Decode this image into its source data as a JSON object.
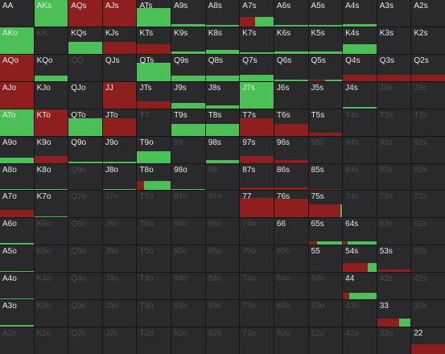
{
  "colors": {
    "raise": "#8e1f1f",
    "call": "#4cbf56",
    "cell": "#2a2a2d",
    "active_text": "#e8e8ea",
    "inactive_text": "#4d4d52"
  },
  "grid": {
    "rows": [
      [
        "AA",
        "AKs",
        "AQs",
        "AJs",
        "ATs",
        "A9s",
        "A8s",
        "A7s",
        "A6s",
        "A5s",
        "A4s",
        "A3s",
        "A2s"
      ],
      [
        "AKo",
        "KK",
        "KQs",
        "KJs",
        "KTs",
        "K9s",
        "K8s",
        "K7s",
        "K6s",
        "K5s",
        "K4s",
        "K3s",
        "K2s"
      ],
      [
        "AQo",
        "KQo",
        "QQ",
        "QJs",
        "QTs",
        "Q9s",
        "Q8s",
        "Q7s",
        "Q6s",
        "Q5s",
        "Q4s",
        "Q3s",
        "Q2s"
      ],
      [
        "AJo",
        "KJo",
        "QJo",
        "JJ",
        "JTs",
        "J9s",
        "J8s",
        "J7s",
        "J6s",
        "J5s",
        "J4s",
        "J3s",
        "J2s"
      ],
      [
        "ATo",
        "KTo",
        "QTo",
        "JTo",
        "TT",
        "T9s",
        "T8s",
        "T7s",
        "T6s",
        "T5s",
        "T4s",
        "T3s",
        "T2s"
      ],
      [
        "A9o",
        "K9o",
        "Q9o",
        "J9o",
        "T9o",
        "99",
        "98s",
        "97s",
        "96s",
        "95s",
        "94s",
        "93s",
        "92s"
      ],
      [
        "A8o",
        "K8o",
        "Q8o",
        "J8o",
        "T8o",
        "98o",
        "88",
        "87s",
        "86s",
        "85s",
        "84s",
        "83s",
        "82s"
      ],
      [
        "A7o",
        "K7o",
        "Q7o",
        "J7o",
        "T7o",
        "97o",
        "87o",
        "77",
        "76s",
        "75s",
        "74s",
        "73s",
        "72s"
      ],
      [
        "A6o",
        "K6o",
        "Q6o",
        "J6o",
        "T6o",
        "96o",
        "86o",
        "76o",
        "66",
        "65s",
        "64s",
        "63s",
        "62s"
      ],
      [
        "A5o",
        "K5o",
        "Q5o",
        "J5o",
        "T5o",
        "95o",
        "85o",
        "75o",
        "65o",
        "55",
        "54s",
        "53s",
        "52s"
      ],
      [
        "A4o",
        "K4o",
        "Q4o",
        "J4o",
        "T4o",
        "94o",
        "84o",
        "74o",
        "64o",
        "54o",
        "44",
        "43s",
        "42s"
      ],
      [
        "A3o",
        "K3o",
        "Q3o",
        "J3o",
        "T3o",
        "93o",
        "83o",
        "73o",
        "63o",
        "53o",
        "43o",
        "33",
        "32s"
      ],
      [
        "A2o",
        "K2o",
        "Q2o",
        "J2o",
        "T2o",
        "92o",
        "82o",
        "72o",
        "62o",
        "52o",
        "42o",
        "32o",
        "22"
      ]
    ],
    "active": [
      [
        1,
        1,
        1,
        1,
        1,
        1,
        1,
        1,
        1,
        1,
        1,
        1,
        1
      ],
      [
        1,
        0,
        1,
        1,
        1,
        1,
        1,
        1,
        1,
        1,
        1,
        1,
        1
      ],
      [
        1,
        1,
        0,
        1,
        1,
        1,
        1,
        1,
        1,
        1,
        1,
        1,
        1
      ],
      [
        1,
        1,
        1,
        1,
        1,
        1,
        1,
        1,
        1,
        1,
        1,
        0,
        0
      ],
      [
        1,
        1,
        1,
        1,
        0,
        1,
        1,
        1,
        1,
        1,
        0,
        0,
        0
      ],
      [
        1,
        1,
        1,
        1,
        1,
        0,
        1,
        1,
        1,
        0,
        0,
        0,
        0
      ],
      [
        1,
        1,
        0,
        1,
        1,
        1,
        0,
        1,
        1,
        1,
        0,
        0,
        0
      ],
      [
        1,
        1,
        0,
        0,
        0,
        0,
        0,
        1,
        1,
        1,
        0,
        0,
        0
      ],
      [
        1,
        0,
        0,
        0,
        0,
        0,
        0,
        0,
        1,
        1,
        1,
        0,
        0
      ],
      [
        1,
        0,
        0,
        0,
        0,
        0,
        0,
        0,
        0,
        1,
        1,
        1,
        0
      ],
      [
        1,
        0,
        0,
        0,
        0,
        0,
        0,
        0,
        0,
        0,
        1,
        0,
        0
      ],
      [
        1,
        0,
        0,
        0,
        0,
        0,
        0,
        0,
        0,
        0,
        0,
        1,
        0
      ],
      [
        0,
        0,
        0,
        0,
        0,
        0,
        0,
        0,
        0,
        0,
        0,
        0,
        1
      ]
    ],
    "frequency": [
      [
        {
          "h": 0.0,
          "r": 0.0,
          "g": 0.0
        },
        {
          "h": 1.0,
          "r": 0.0,
          "g": 1.0
        },
        {
          "h": 1.0,
          "r": 1.0,
          "g": 0.0
        },
        {
          "h": 1.0,
          "r": 1.0,
          "g": 0.0
        },
        {
          "h": 0.7,
          "r": 0.0,
          "g": 1.0
        },
        {
          "h": 0.1,
          "r": 0.0,
          "g": 1.0
        },
        {
          "h": 0.05,
          "r": 0.0,
          "g": 1.0
        },
        {
          "h": 0.35,
          "r": 0.45,
          "g": 0.55
        },
        {
          "h": 0.06,
          "r": 0.0,
          "g": 1.0
        },
        {
          "h": 0.05,
          "r": 0.0,
          "g": 1.0
        },
        {
          "h": 0.08,
          "r": 0.0,
          "g": 1.0
        },
        {
          "h": 0.0,
          "r": 0.0,
          "g": 0.0
        },
        {
          "h": 0.0,
          "r": 0.0,
          "g": 0.0
        }
      ],
      [
        {
          "h": 1.0,
          "r": 0.0,
          "g": 1.0
        },
        {
          "h": 0.0,
          "r": 0.0,
          "g": 0.0
        },
        {
          "h": 0.45,
          "r": 0.0,
          "g": 1.0
        },
        {
          "h": 0.45,
          "r": 1.0,
          "g": 0.0
        },
        {
          "h": 0.35,
          "r": 1.0,
          "g": 0.0
        },
        {
          "h": 0.1,
          "r": 0.0,
          "g": 1.0
        },
        {
          "h": 0.15,
          "r": 0.0,
          "g": 1.0
        },
        {
          "h": 0.05,
          "r": 0.0,
          "g": 1.0
        },
        {
          "h": 0.1,
          "r": 0.0,
          "g": 1.0
        },
        {
          "h": 0.1,
          "r": 0.0,
          "g": 1.0
        },
        {
          "h": 0.35,
          "r": 0.0,
          "g": 1.0
        },
        {
          "h": 0.0,
          "r": 0.0,
          "g": 0.0
        },
        {
          "h": 0.0,
          "r": 0.0,
          "g": 0.0
        }
      ],
      [
        {
          "h": 1.0,
          "r": 1.0,
          "g": 0.0
        },
        {
          "h": 0.2,
          "r": 0.0,
          "g": 1.0
        },
        {
          "h": 0.0,
          "r": 0.0,
          "g": 0.0
        },
        {
          "h": 0.0,
          "r": 0.0,
          "g": 0.0
        },
        {
          "h": 0.7,
          "r": 0.0,
          "g": 1.0
        },
        {
          "h": 0.2,
          "r": 0.0,
          "g": 1.0
        },
        {
          "h": 0.2,
          "r": 0.0,
          "g": 1.0
        },
        {
          "h": 0.25,
          "r": 0.0,
          "g": 1.0
        },
        {
          "h": 0.05,
          "r": 0.0,
          "g": 1.0
        },
        {
          "h": 0.06,
          "r": 0.5,
          "g": 0.5
        },
        {
          "h": 0.25,
          "r": 1.0,
          "g": 0.0
        },
        {
          "h": 0.25,
          "r": 1.0,
          "g": 0.0
        },
        {
          "h": 0.25,
          "r": 1.0,
          "g": 0.0
        }
      ],
      [
        {
          "h": 1.0,
          "r": 1.0,
          "g": 0.0
        },
        {
          "h": 0.0,
          "r": 0.0,
          "g": 0.0
        },
        {
          "h": 0.0,
          "r": 0.0,
          "g": 0.0
        },
        {
          "h": 1.0,
          "r": 1.0,
          "g": 0.0
        },
        {
          "h": 0.25,
          "r": 1.0,
          "g": 0.0
        },
        {
          "h": 0.2,
          "r": 0.0,
          "g": 1.0
        },
        {
          "h": 0.1,
          "r": 0.0,
          "g": 1.0
        },
        {
          "h": 1.0,
          "r": 0.0,
          "g": 1.0
        },
        {
          "h": 0.0,
          "r": 0.0,
          "g": 0.0
        },
        {
          "h": 0.0,
          "r": 0.0,
          "g": 0.0
        },
        {
          "h": 0.06,
          "r": 0.0,
          "g": 1.0
        },
        {
          "h": 0.0,
          "r": 0.0,
          "g": 0.0
        },
        {
          "h": 0.0,
          "r": 0.0,
          "g": 0.0
        }
      ],
      [
        {
          "h": 1.0,
          "r": 0.0,
          "g": 1.0
        },
        {
          "h": 1.0,
          "r": 1.0,
          "g": 0.0
        },
        {
          "h": 0.65,
          "r": 0.0,
          "g": 1.0
        },
        {
          "h": 0.65,
          "r": 1.0,
          "g": 0.0
        },
        {
          "h": 0.0,
          "r": 0.0,
          "g": 0.0
        },
        {
          "h": 0.45,
          "r": 0.0,
          "g": 1.0
        },
        {
          "h": 0.45,
          "r": 0.0,
          "g": 1.0
        },
        {
          "h": 0.65,
          "r": 1.0,
          "g": 0.0
        },
        {
          "h": 0.45,
          "r": 1.0,
          "g": 0.0
        },
        {
          "h": 0.1,
          "r": 1.0,
          "g": 0.0
        },
        {
          "h": 0.0,
          "r": 0.0,
          "g": 0.0
        },
        {
          "h": 0.0,
          "r": 0.0,
          "g": 0.0
        },
        {
          "h": 0.0,
          "r": 0.0,
          "g": 0.0
        }
      ],
      [
        {
          "h": 0.2,
          "r": 0.0,
          "g": 1.0
        },
        {
          "h": 0.25,
          "r": 1.0,
          "g": 0.0
        },
        {
          "h": 0.06,
          "r": 0.0,
          "g": 1.0
        },
        {
          "h": 0.06,
          "r": 0.0,
          "g": 1.0
        },
        {
          "h": 0.45,
          "r": 0.0,
          "g": 1.0
        },
        {
          "h": 0.0,
          "r": 0.0,
          "g": 0.0
        },
        {
          "h": 0.1,
          "r": 0.0,
          "g": 1.0
        },
        {
          "h": 0.25,
          "r": 1.0,
          "g": 0.0
        },
        {
          "h": 0.12,
          "r": 1.0,
          "g": 0.0
        },
        {
          "h": 0.0,
          "r": 0.0,
          "g": 0.0
        },
        {
          "h": 0.0,
          "r": 0.0,
          "g": 0.0
        },
        {
          "h": 0.0,
          "r": 0.0,
          "g": 0.0
        },
        {
          "h": 0.0,
          "r": 0.0,
          "g": 0.0
        }
      ],
      [
        {
          "h": 0.05,
          "r": 0.0,
          "g": 1.0
        },
        {
          "h": 0.05,
          "r": 0.0,
          "g": 1.0
        },
        {
          "h": 0.0,
          "r": 0.0,
          "g": 0.0
        },
        {
          "h": 0.05,
          "r": 0.0,
          "g": 1.0
        },
        {
          "h": 0.35,
          "r": 0.2,
          "g": 0.8
        },
        {
          "h": 0.05,
          "r": 0.0,
          "g": 1.0
        },
        {
          "h": 0.0,
          "r": 0.0,
          "g": 0.0
        },
        {
          "h": 0.1,
          "r": 1.0,
          "g": 0.0
        },
        {
          "h": 0.1,
          "r": 1.0,
          "g": 0.0
        },
        {
          "h": 0.05,
          "r": 1.0,
          "g": 0.0
        },
        {
          "h": 0.0,
          "r": 0.0,
          "g": 0.0
        },
        {
          "h": 0.0,
          "r": 0.0,
          "g": 0.0
        },
        {
          "h": 0.0,
          "r": 0.0,
          "g": 0.0
        }
      ],
      [
        {
          "h": 0.3,
          "r": 1.0,
          "g": 0.0
        },
        {
          "h": 0.05,
          "r": 0.0,
          "g": 1.0
        },
        {
          "h": 0.0,
          "r": 0.0,
          "g": 0.0
        },
        {
          "h": 0.0,
          "r": 0.0,
          "g": 0.0
        },
        {
          "h": 0.0,
          "r": 0.0,
          "g": 0.0
        },
        {
          "h": 0.0,
          "r": 0.0,
          "g": 0.0
        },
        {
          "h": 0.0,
          "r": 0.0,
          "g": 0.0
        },
        {
          "h": 0.75,
          "r": 1.0,
          "g": 0.0
        },
        {
          "h": 0.7,
          "r": 1.0,
          "g": 0.0
        },
        {
          "h": 0.5,
          "r": 0.95,
          "g": 0.05
        },
        {
          "h": 0.0,
          "r": 0.0,
          "g": 0.0
        },
        {
          "h": 0.0,
          "r": 0.0,
          "g": 0.0
        },
        {
          "h": 0.0,
          "r": 0.0,
          "g": 0.0
        }
      ],
      [
        {
          "h": 0.08,
          "r": 0.0,
          "g": 1.0
        },
        {
          "h": 0.0,
          "r": 0.0,
          "g": 0.0
        },
        {
          "h": 0.0,
          "r": 0.0,
          "g": 0.0
        },
        {
          "h": 0.0,
          "r": 0.0,
          "g": 0.0
        },
        {
          "h": 0.0,
          "r": 0.0,
          "g": 0.0
        },
        {
          "h": 0.0,
          "r": 0.0,
          "g": 0.0
        },
        {
          "h": 0.0,
          "r": 0.0,
          "g": 0.0
        },
        {
          "h": 0.0,
          "r": 0.0,
          "g": 0.0
        },
        {
          "h": 0.0,
          "r": 0.0,
          "g": 0.0
        },
        {
          "h": 0.12,
          "r": 0.25,
          "g": 0.75
        },
        {
          "h": 0.12,
          "r": 0.15,
          "g": 0.85
        },
        {
          "h": 0.0,
          "r": 0.0,
          "g": 0.0
        },
        {
          "h": 0.0,
          "r": 0.0,
          "g": 0.0
        }
      ],
      [
        {
          "h": 0.05,
          "r": 0.0,
          "g": 1.0
        },
        {
          "h": 0.0,
          "r": 0.0,
          "g": 0.0
        },
        {
          "h": 0.0,
          "r": 0.0,
          "g": 0.0
        },
        {
          "h": 0.0,
          "r": 0.0,
          "g": 0.0
        },
        {
          "h": 0.0,
          "r": 0.0,
          "g": 0.0
        },
        {
          "h": 0.0,
          "r": 0.0,
          "g": 0.0
        },
        {
          "h": 0.0,
          "r": 0.0,
          "g": 0.0
        },
        {
          "h": 0.0,
          "r": 0.0,
          "g": 0.0
        },
        {
          "h": 0.0,
          "r": 0.0,
          "g": 0.0
        },
        {
          "h": 0.0,
          "r": 0.0,
          "g": 0.0
        },
        {
          "h": 0.35,
          "r": 0.75,
          "g": 0.25
        },
        {
          "h": 0.1,
          "r": 1.0,
          "g": 0.0
        },
        {
          "h": 0.0,
          "r": 0.0,
          "g": 0.0
        }
      ],
      [
        {
          "h": 0.05,
          "r": 0.0,
          "g": 1.0
        },
        {
          "h": 0.0,
          "r": 0.0,
          "g": 0.0
        },
        {
          "h": 0.0,
          "r": 0.0,
          "g": 0.0
        },
        {
          "h": 0.0,
          "r": 0.0,
          "g": 0.0
        },
        {
          "h": 0.0,
          "r": 0.0,
          "g": 0.0
        },
        {
          "h": 0.0,
          "r": 0.0,
          "g": 0.0
        },
        {
          "h": 0.0,
          "r": 0.0,
          "g": 0.0
        },
        {
          "h": 0.0,
          "r": 0.0,
          "g": 0.0
        },
        {
          "h": 0.0,
          "r": 0.0,
          "g": 0.0
        },
        {
          "h": 0.0,
          "r": 0.0,
          "g": 0.0
        },
        {
          "h": 0.25,
          "r": 0.2,
          "g": 0.8
        },
        {
          "h": 0.0,
          "r": 0.0,
          "g": 0.0
        },
        {
          "h": 0.0,
          "r": 0.0,
          "g": 0.0
        }
      ],
      [
        {
          "h": 0.05,
          "r": 0.0,
          "g": 1.0
        },
        {
          "h": 0.0,
          "r": 0.0,
          "g": 0.0
        },
        {
          "h": 0.0,
          "r": 0.0,
          "g": 0.0
        },
        {
          "h": 0.0,
          "r": 0.0,
          "g": 0.0
        },
        {
          "h": 0.0,
          "r": 0.0,
          "g": 0.0
        },
        {
          "h": 0.0,
          "r": 0.0,
          "g": 0.0
        },
        {
          "h": 0.0,
          "r": 0.0,
          "g": 0.0
        },
        {
          "h": 0.0,
          "r": 0.0,
          "g": 0.0
        },
        {
          "h": 0.0,
          "r": 0.0,
          "g": 0.0
        },
        {
          "h": 0.0,
          "r": 0.0,
          "g": 0.0
        },
        {
          "h": 0.0,
          "r": 0.0,
          "g": 0.0
        },
        {
          "h": 0.3,
          "r": 0.65,
          "g": 0.35
        },
        {
          "h": 0.0,
          "r": 0.0,
          "g": 0.0
        }
      ],
      [
        {
          "h": 0.0,
          "r": 0.0,
          "g": 0.0
        },
        {
          "h": 0.0,
          "r": 0.0,
          "g": 0.0
        },
        {
          "h": 0.0,
          "r": 0.0,
          "g": 0.0
        },
        {
          "h": 0.0,
          "r": 0.0,
          "g": 0.0
        },
        {
          "h": 0.0,
          "r": 0.0,
          "g": 0.0
        },
        {
          "h": 0.0,
          "r": 0.0,
          "g": 0.0
        },
        {
          "h": 0.0,
          "r": 0.0,
          "g": 0.0
        },
        {
          "h": 0.0,
          "r": 0.0,
          "g": 0.0
        },
        {
          "h": 0.0,
          "r": 0.0,
          "g": 0.0
        },
        {
          "h": 0.0,
          "r": 0.0,
          "g": 0.0
        },
        {
          "h": 0.0,
          "r": 0.0,
          "g": 0.0
        },
        {
          "h": 0.0,
          "r": 0.0,
          "g": 0.0
        },
        {
          "h": 0.35,
          "r": 1.0,
          "g": 0.0
        }
      ]
    ]
  }
}
